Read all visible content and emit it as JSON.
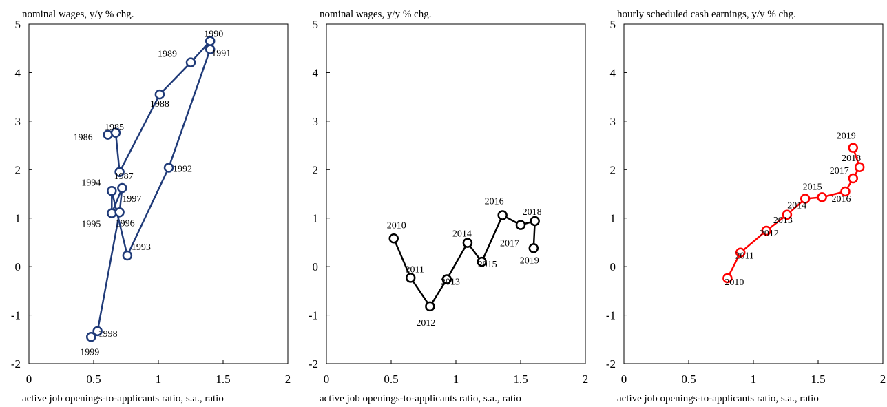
{
  "chart_data": [
    {
      "type": "scatter",
      "connected": true,
      "title": "",
      "ylabel": "nominal wages, y/y % chg.",
      "xlabel": "active job openings-to-applicants  ratio, s.a., ratio",
      "xlim": [
        0,
        2
      ],
      "ylim": [
        -2,
        5
      ],
      "xticks": [
        0,
        0.5,
        1,
        1.5,
        2
      ],
      "xtick_labels": [
        "0",
        "0.5",
        "1",
        "1.5",
        "2"
      ],
      "yticks": [
        -2,
        -1,
        0,
        1,
        2,
        3,
        4,
        5
      ],
      "ytick_labels": [
        "-2",
        "-1",
        "0",
        "1",
        "2",
        "3",
        "4",
        "5"
      ],
      "grid": false,
      "color": "#1f3a78",
      "points": [
        {
          "x": 0.61,
          "y": 2.72,
          "label": "1986"
        },
        {
          "x": 0.67,
          "y": 2.76,
          "label": "1985"
        },
        {
          "x": 0.7,
          "y": 1.95,
          "label": "1987"
        },
        {
          "x": 1.01,
          "y": 3.55,
          "label": "1988"
        },
        {
          "x": 1.25,
          "y": 4.21,
          "label": "1989"
        },
        {
          "x": 1.4,
          "y": 4.65,
          "label": "1990"
        },
        {
          "x": 1.4,
          "y": 4.48,
          "label": "1991"
        },
        {
          "x": 1.08,
          "y": 2.04,
          "label": "1992"
        },
        {
          "x": 0.76,
          "y": 0.23,
          "label": "1993"
        },
        {
          "x": 0.64,
          "y": 1.56,
          "label": "1994"
        },
        {
          "x": 0.64,
          "y": 1.1,
          "label": "1995"
        },
        {
          "x": 0.7,
          "y": 1.12,
          "label": "1996"
        },
        {
          "x": 0.72,
          "y": 1.62,
          "label": "1997"
        },
        {
          "x": 0.53,
          "y": -1.33,
          "label": "1998"
        },
        {
          "x": 0.48,
          "y": -1.45,
          "label": "1999"
        }
      ],
      "path": [
        {
          "x": 0.61,
          "y": 2.72
        },
        {
          "x": 0.67,
          "y": 2.76
        },
        {
          "x": 0.7,
          "y": 1.95
        },
        {
          "x": 1.01,
          "y": 3.55
        },
        {
          "x": 1.25,
          "y": 4.21
        },
        {
          "x": 1.4,
          "y": 4.65
        },
        {
          "x": 1.4,
          "y": 4.48
        },
        {
          "x": 1.08,
          "y": 2.04
        },
        {
          "x": 0.76,
          "y": 0.23
        },
        {
          "x": 0.64,
          "y": 1.56
        },
        {
          "x": 0.64,
          "y": 1.1
        },
        {
          "x": 0.72,
          "y": 1.62
        },
        {
          "x": 0.7,
          "y": 1.12
        },
        {
          "x": 0.53,
          "y": -1.33
        },
        {
          "x": 0.48,
          "y": -1.45
        }
      ]
    },
    {
      "type": "scatter",
      "connected": true,
      "title": "",
      "ylabel": "nominal wages, y/y % chg.",
      "xlabel": "active job openings-to-applicants  ratio, s.a., ratio",
      "xlim": [
        0,
        2
      ],
      "ylim": [
        -2,
        5
      ],
      "xticks": [
        0,
        0.5,
        1,
        1.5,
        2
      ],
      "xtick_labels": [
        "0",
        "0.5",
        "1",
        "1.5",
        "2"
      ],
      "yticks": [
        -2,
        -1,
        0,
        1,
        2,
        3,
        4,
        5
      ],
      "ytick_labels": [
        "-2",
        "-1",
        "0",
        "1",
        "2",
        "3",
        "4",
        "5"
      ],
      "grid": false,
      "color": "#000000",
      "points": [
        {
          "x": 0.52,
          "y": 0.58,
          "label": "2010"
        },
        {
          "x": 0.65,
          "y": -0.23,
          "label": "2011"
        },
        {
          "x": 0.8,
          "y": -0.82,
          "label": "2012"
        },
        {
          "x": 0.93,
          "y": -0.26,
          "label": "2013"
        },
        {
          "x": 1.09,
          "y": 0.49,
          "label": "2014"
        },
        {
          "x": 1.2,
          "y": 0.1,
          "label": "2015"
        },
        {
          "x": 1.36,
          "y": 1.06,
          "label": "2016"
        },
        {
          "x": 1.5,
          "y": 0.86,
          "label": "2017"
        },
        {
          "x": 1.61,
          "y": 0.94,
          "label": "2018"
        },
        {
          "x": 1.6,
          "y": 0.38,
          "label": "2019"
        }
      ]
    },
    {
      "type": "scatter",
      "connected": true,
      "title": "",
      "ylabel": "hourly  scheduled cash earnings, y/y % chg.",
      "xlabel": "active job openings-to-applicants  ratio, s.a., ratio",
      "xlim": [
        0,
        2
      ],
      "ylim": [
        -2,
        5
      ],
      "xticks": [
        0,
        0.5,
        1,
        1.5,
        2
      ],
      "xtick_labels": [
        "0",
        "0.5",
        "1",
        "1.5",
        "2"
      ],
      "yticks": [
        -2,
        -1,
        0,
        1,
        2,
        3,
        4,
        5
      ],
      "ytick_labels": [
        "-2",
        "-1",
        "0",
        "1",
        "2",
        "3",
        "4",
        "5"
      ],
      "grid": false,
      "color": "#ff0000",
      "points": [
        {
          "x": 0.8,
          "y": -0.24,
          "label": "2010"
        },
        {
          "x": 0.9,
          "y": 0.29,
          "label": "2011"
        },
        {
          "x": 1.1,
          "y": 0.74,
          "label": "2012"
        },
        {
          "x": 1.26,
          "y": 1.07,
          "label": "2013"
        },
        {
          "x": 1.4,
          "y": 1.4,
          "label": "2014"
        },
        {
          "x": 1.53,
          "y": 1.43,
          "label": "2015"
        },
        {
          "x": 1.71,
          "y": 1.55,
          "label": "2016"
        },
        {
          "x": 1.77,
          "y": 1.82,
          "label": "2017"
        },
        {
          "x": 1.82,
          "y": 2.05,
          "label": "2018"
        },
        {
          "x": 1.77,
          "y": 2.45,
          "label": "2019"
        }
      ]
    }
  ]
}
